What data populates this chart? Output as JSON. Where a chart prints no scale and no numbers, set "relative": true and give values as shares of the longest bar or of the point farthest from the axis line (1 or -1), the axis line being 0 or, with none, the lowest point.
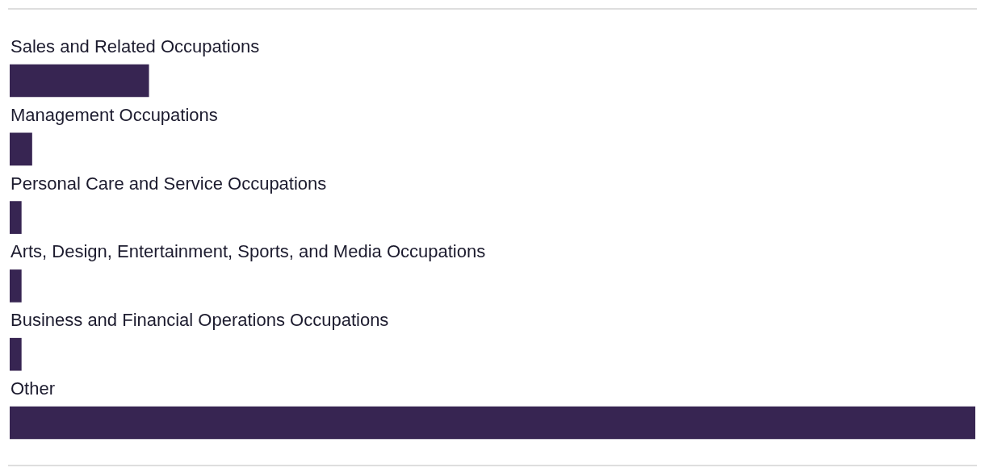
{
  "chart_data": {
    "type": "bar",
    "orientation": "horizontal",
    "relative": true,
    "categories": [
      "Sales and Related Occupations",
      "Management Occupations",
      "Personal Care and Service Occupations",
      "Arts, Design, Entertainment, Sports, and Media Occupations",
      "Business and Financial Operations Occupations",
      "Other"
    ],
    "values": [
      0.144,
      0.023,
      0.012,
      0.012,
      0.012,
      1
    ],
    "color": "#372552"
  }
}
